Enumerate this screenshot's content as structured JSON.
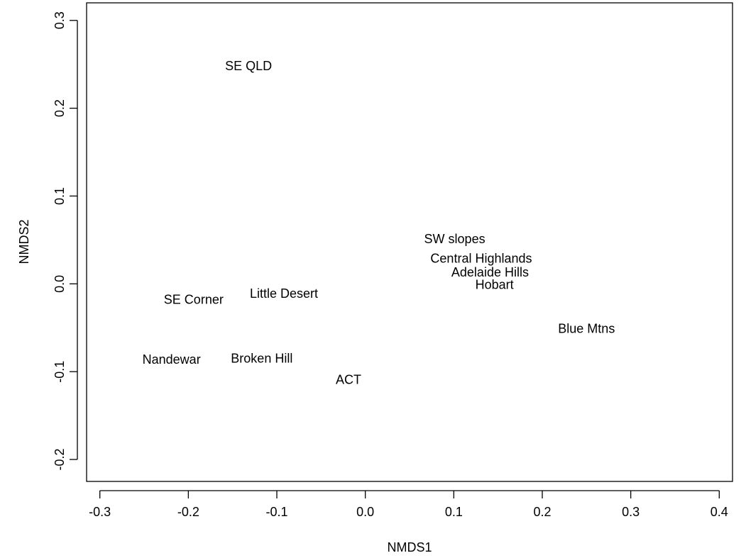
{
  "chart_data": {
    "type": "scatter",
    "title": "",
    "xlabel": "NMDS1",
    "ylabel": "NMDS2",
    "xlim": [
      -0.315,
      0.415
    ],
    "ylim": [
      -0.225,
      0.32
    ],
    "xticks": [
      -0.3,
      -0.2,
      -0.1,
      0.0,
      0.1,
      0.2,
      0.3,
      0.4
    ],
    "xtick_labels": [
      "-0.3",
      "-0.2",
      "-0.1",
      "0.0",
      "0.1",
      "0.2",
      "0.3",
      "0.4"
    ],
    "yticks": [
      -0.2,
      -0.1,
      0.0,
      0.1,
      0.2,
      0.3
    ],
    "ytick_labels": [
      "-0.2",
      "-0.1",
      "0.0",
      "0.1",
      "0.2",
      "0.3"
    ],
    "grid": false,
    "points": [
      {
        "label": "SE QLD",
        "x": -0.132,
        "y": 0.248
      },
      {
        "label": "SW slopes",
        "x": 0.101,
        "y": 0.051
      },
      {
        "label": "Central Highlands",
        "x": 0.131,
        "y": 0.029
      },
      {
        "label": "Adelaide Hills",
        "x": 0.141,
        "y": 0.013
      },
      {
        "label": "Hobart",
        "x": 0.146,
        "y": -0.001
      },
      {
        "label": "Blue Mtns",
        "x": 0.25,
        "y": -0.051
      },
      {
        "label": "SE Corner",
        "x": -0.194,
        "y": -0.018
      },
      {
        "label": "Little Desert",
        "x": -0.092,
        "y": -0.011
      },
      {
        "label": "Nandewar",
        "x": -0.219,
        "y": -0.086
      },
      {
        "label": "Broken Hill",
        "x": -0.117,
        "y": -0.085
      },
      {
        "label": "ACT",
        "x": -0.019,
        "y": -0.109
      }
    ]
  }
}
